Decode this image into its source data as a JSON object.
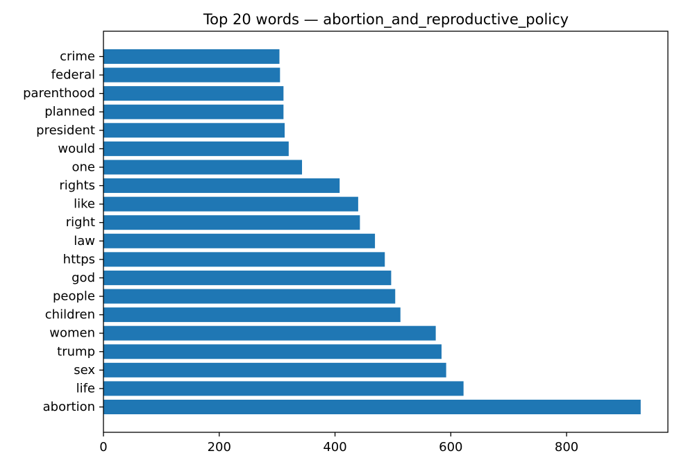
{
  "chart_data": {
    "type": "bar",
    "orientation": "horizontal",
    "title": "Top 20 words — abortion_and_reproductive_policy",
    "xlabel": "",
    "ylabel": "",
    "categories": [
      "abortion",
      "life",
      "sex",
      "trump",
      "women",
      "children",
      "people",
      "god",
      "https",
      "law",
      "right",
      "like",
      "rights",
      "one",
      "would",
      "president",
      "planned",
      "parenthood",
      "federal",
      "crime"
    ],
    "values": [
      928,
      622,
      592,
      584,
      574,
      513,
      504,
      497,
      486,
      469,
      443,
      440,
      408,
      343,
      320,
      313,
      311,
      311,
      305,
      304
    ],
    "xlim": [
      0,
      975
    ],
    "xticks": [
      0,
      200,
      400,
      600,
      800
    ],
    "bar_color": "#1f77b4",
    "grid": false,
    "legend": "none"
  }
}
